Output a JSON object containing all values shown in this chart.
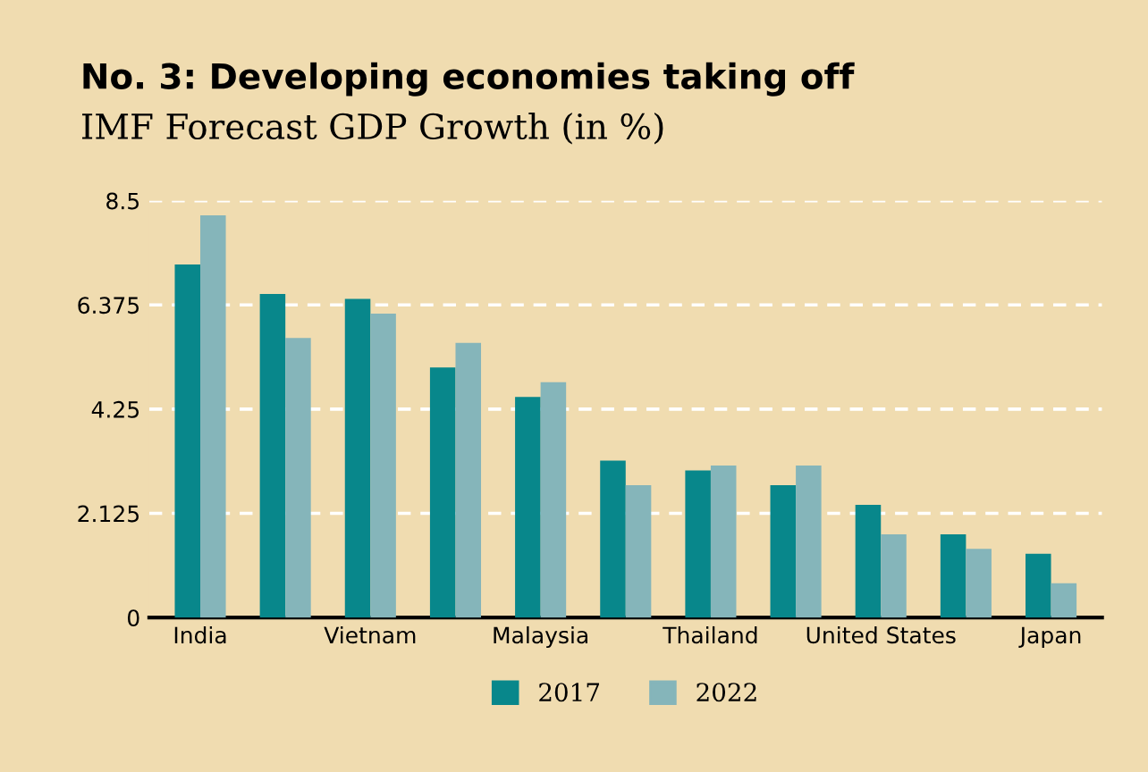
{
  "chart_data": {
    "type": "bar",
    "title": "No. 3: Developing economies taking off",
    "subtitle": "IMF Forecast GDP Growth (in %)",
    "categories": [
      "India",
      null,
      "Vietnam",
      null,
      "Malaysia",
      null,
      "Thailand",
      null,
      "United States",
      null,
      "Japan"
    ],
    "series": [
      {
        "name": "2017",
        "color": "#08878b",
        "values": [
          7.2,
          6.6,
          6.5,
          5.1,
          4.5,
          3.2,
          3.0,
          2.7,
          2.3,
          1.7,
          1.3
        ]
      },
      {
        "name": "2022",
        "color": "#85b5ba",
        "values": [
          8.2,
          5.7,
          6.2,
          5.6,
          4.8,
          2.7,
          3.1,
          3.1,
          1.7,
          1.4,
          0.7
        ]
      }
    ],
    "ylim": [
      0,
      8.5
    ],
    "yticks": [
      0,
      2.125,
      4.25,
      6.375,
      8.5
    ],
    "grid": "y",
    "legend": "bottom"
  }
}
